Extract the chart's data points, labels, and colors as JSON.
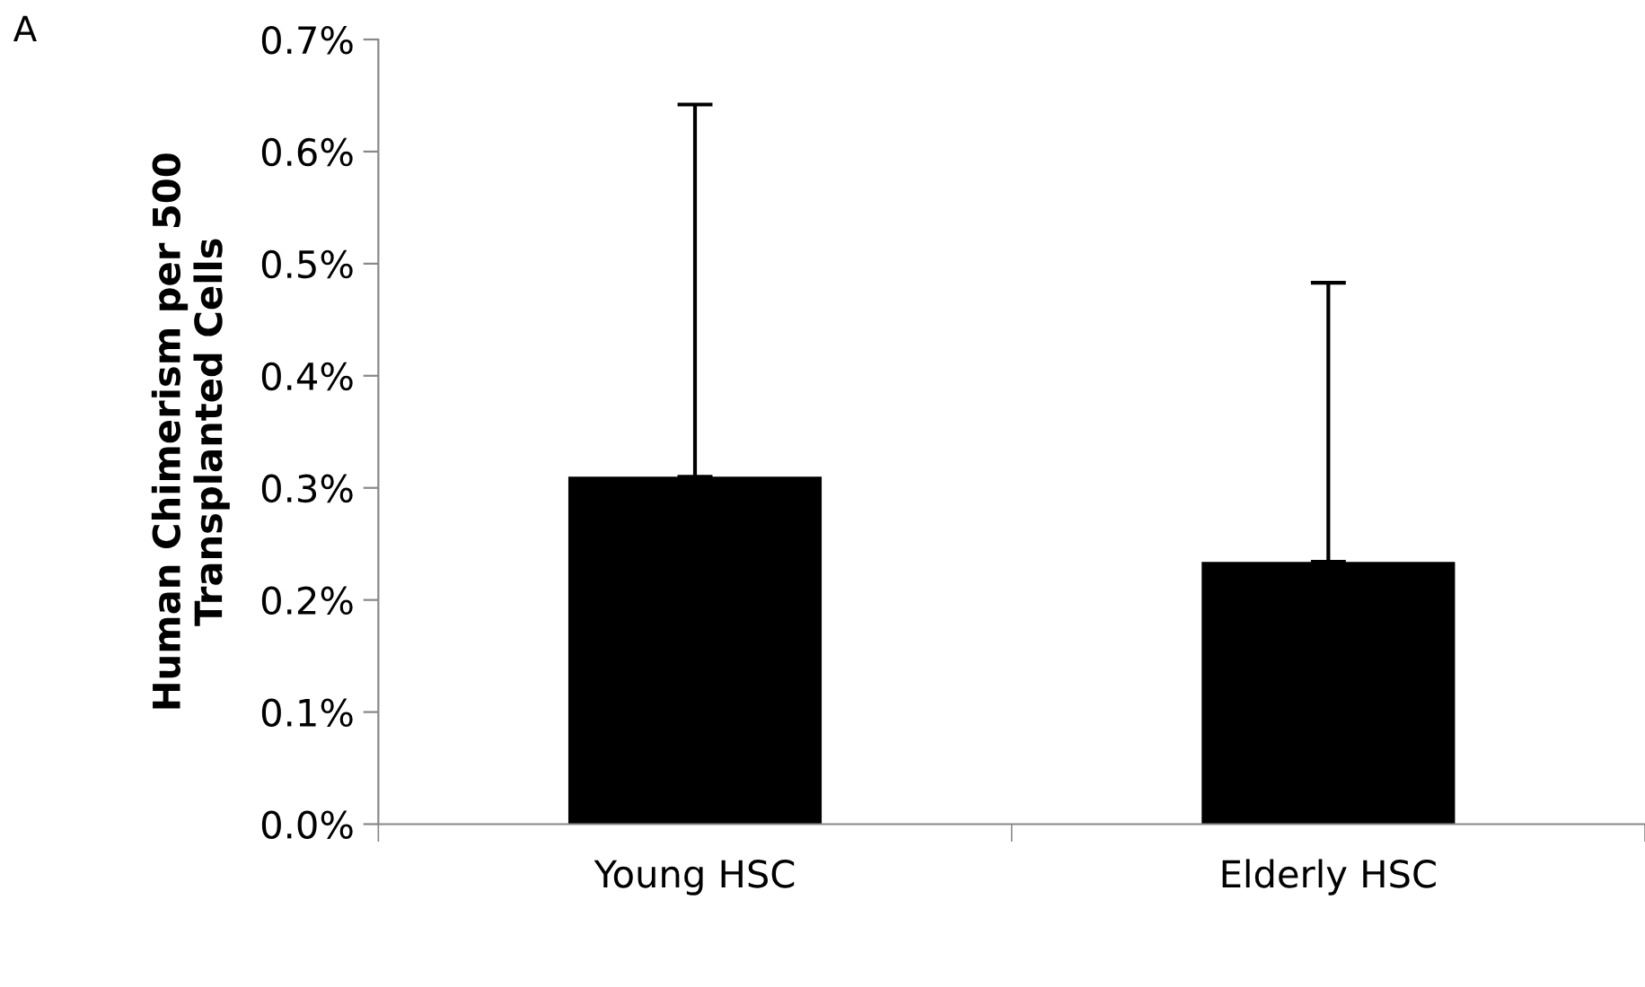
{
  "chart_data": {
    "type": "bar",
    "ylabel": "Human Chimerism per 500\nTransplanted Cells",
    "categories": [
      "Young HSC",
      "Elderly HSC"
    ],
    "values": [
      0.31,
      0.234
    ],
    "color": "#000000",
    "errors": [
      [
        0.31,
        0.642
      ],
      [
        0.234,
        0.483
      ]
    ],
    "ylim": [
      0,
      0.7
    ],
    "yticks": [
      {
        "value": 0,
        "label": "0.0%"
      },
      {
        "value": 0.1,
        "label": "0.1%"
      },
      {
        "value": 0.2,
        "label": "0.2%"
      },
      {
        "value": 0.3,
        "label": "0.3%"
      },
      {
        "value": 0.4,
        "label": "0.4%"
      },
      {
        "value": 0.5,
        "label": "0.5%"
      },
      {
        "value": 0.6,
        "label": "0.6%"
      },
      {
        "value": 0.7,
        "label": "0.7%"
      }
    ],
    "annotations": [
      "A"
    ],
    "grid": false
  }
}
